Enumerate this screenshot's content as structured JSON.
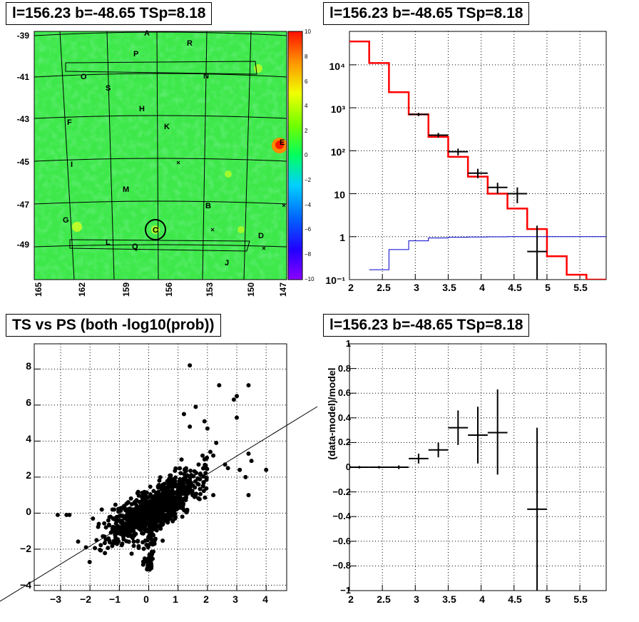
{
  "panels": {
    "sky_title": "l=156.23 b=-48.65 TSp=8.18",
    "spectrum_title": "l=156.23 b=-48.65 TSp=8.18",
    "scatter_title": "TS vs PS (both -log10(prob))",
    "residual_title": "l=156.23 b=-48.65 TSp=8.18"
  },
  "colors": {
    "map_bg": "#3ee84a",
    "hist_red": "#ff0000",
    "hist_blue": "#0000cc",
    "points": "#000000"
  },
  "chart_data": [
    {
      "type": "heatmap",
      "title": "l=156.23 b=-48.65 TSp=8.18",
      "x_ticks": [
        "165",
        "162",
        "159",
        "156",
        "153",
        "150",
        "147"
      ],
      "y_ticks": [
        "-39",
        "-41",
        "-43",
        "-45",
        "-47",
        "-49"
      ],
      "colorbar_ticks": [
        "10",
        "8",
        "6",
        "4",
        "2",
        "0",
        "−2",
        "−4",
        "−6",
        "−8",
        "−10"
      ],
      "zlim": [
        -10,
        10
      ],
      "source_labels": [
        "A",
        "R",
        "P",
        "O",
        "N",
        "S",
        "H",
        "F",
        "K",
        "E",
        "I",
        "M",
        "B",
        "G",
        "C",
        "D",
        "L",
        "Q",
        "J"
      ]
    },
    {
      "type": "line",
      "title": "l=156.23 b=-48.65 TSp=8.18",
      "log_y": true,
      "xlim": [
        2,
        5.9
      ],
      "ylim": [
        0.1,
        60000
      ],
      "x_ticks": [
        "2",
        "2.5",
        "3",
        "3.5",
        "4",
        "4.5",
        "5",
        "5.5"
      ],
      "y_ticks": [
        "10⁻¹",
        "1",
        "10",
        "10²",
        "10³",
        "10⁴"
      ],
      "series": [
        {
          "style": "red-step",
          "bin_edges": [
            2,
            2.3,
            2.6,
            2.9,
            3.2,
            3.5,
            3.8,
            4.1,
            4.4,
            4.7,
            5.0,
            5.3,
            5.6,
            5.9
          ],
          "values": [
            35000,
            11000,
            2300,
            700,
            210,
            72,
            25,
            10,
            4.5,
            1.5,
            0.35,
            0.13,
            0.1
          ]
        },
        {
          "style": "blue-step",
          "bin_edges": [
            2.3,
            2.6,
            2.9,
            3.2,
            3.5,
            3.8,
            4.1,
            4.4,
            4.7,
            5.0,
            5.3,
            5.6,
            5.9
          ],
          "values": [
            0.17,
            0.5,
            0.8,
            0.93,
            0.97,
            0.98,
            0.99,
            1.0,
            1.0,
            1.0,
            1.0,
            1.0
          ]
        },
        {
          "style": "black-points",
          "x": [
            3.05,
            3.35,
            3.65,
            3.95,
            4.25,
            4.55,
            4.85
          ],
          "y": [
            700,
            230,
            95,
            30,
            14,
            10,
            0.45
          ],
          "xerr": 0.15,
          "ylo": [
            640,
            205,
            78,
            23,
            10,
            6,
            0.1
          ],
          "yhi": [
            760,
            260,
            112,
            38,
            18,
            14,
            1.8
          ]
        }
      ]
    },
    {
      "type": "scatter",
      "title": "TS vs PS (both -log10(prob))",
      "xlim": [
        -3.9,
        4.7
      ],
      "ylim": [
        -4.3,
        9.4
      ],
      "x_ticks": [
        "−3",
        "−2",
        "−1",
        "0",
        "1",
        "2",
        "3",
        "4"
      ],
      "y_ticks": [
        "−4",
        "−2",
        "0",
        "2",
        "4",
        "6",
        "8"
      ],
      "grid": true,
      "fit_line": {
        "slope": 1.0,
        "intercept": 0.0
      },
      "outliers": [
        [
          -3.1,
          -0.1
        ],
        [
          -2.8,
          -0.1
        ],
        [
          -2.7,
          -0.1
        ],
        [
          -1.9,
          -0.3
        ],
        [
          -1.6,
          0.2
        ],
        [
          -1.3,
          -0.2
        ],
        [
          -1.7,
          -0.6
        ],
        [
          1.4,
          8.2
        ],
        [
          2.4,
          7.1
        ],
        [
          3.4,
          7.1
        ],
        [
          2.9,
          6.3
        ],
        [
          3.0,
          6.5
        ],
        [
          3.0,
          5.3
        ],
        [
          1.9,
          5.1
        ],
        [
          2.0,
          4.7
        ],
        [
          2.3,
          3.9
        ],
        [
          2.1,
          3.4
        ],
        [
          3.4,
          3.3
        ],
        [
          2.6,
          2.7
        ],
        [
          3.5,
          2.9
        ],
        [
          4.0,
          2.4
        ],
        [
          3.3,
          2.0
        ],
        [
          3.1,
          2.4
        ],
        [
          3.4,
          1.0
        ],
        [
          2.7,
          2.5
        ],
        [
          1.7,
          2.7
        ],
        [
          2.2,
          3.2
        ],
        [
          1.2,
          5.5
        ],
        [
          1.6,
          5.9
        ],
        [
          1.4,
          4.8
        ],
        [
          2.2,
          1.0
        ]
      ]
    },
    {
      "type": "scatter",
      "title": "l=156.23 b=-48.65 TSp=8.18",
      "ylabel": "(data-model)/model",
      "xlim": [
        2,
        5.9
      ],
      "ylim": [
        -1,
        1
      ],
      "x_ticks": [
        "2",
        "2.5",
        "3",
        "3.5",
        "4",
        "4.5",
        "5",
        "5.5"
      ],
      "y_ticks": [
        "−1",
        "−0.8",
        "−0.6",
        "−0.4",
        "−0.2",
        "0",
        "0.2",
        "0.4",
        "0.6",
        "0.8",
        "1"
      ],
      "grid": true,
      "x": [
        2.15,
        2.45,
        2.75,
        3.05,
        3.35,
        3.65,
        3.95,
        4.25,
        4.85
      ],
      "y": [
        0.0,
        0.0,
        0.0,
        0.07,
        0.14,
        0.32,
        0.26,
        0.28,
        -0.34
      ],
      "xerr": 0.15,
      "ylo": [
        -0.01,
        -0.01,
        -0.015,
        0.03,
        0.08,
        0.18,
        0.03,
        -0.06,
        -1.0
      ],
      "yhi": [
        0.01,
        0.01,
        0.015,
        0.11,
        0.2,
        0.46,
        0.49,
        0.63,
        0.32
      ]
    }
  ]
}
